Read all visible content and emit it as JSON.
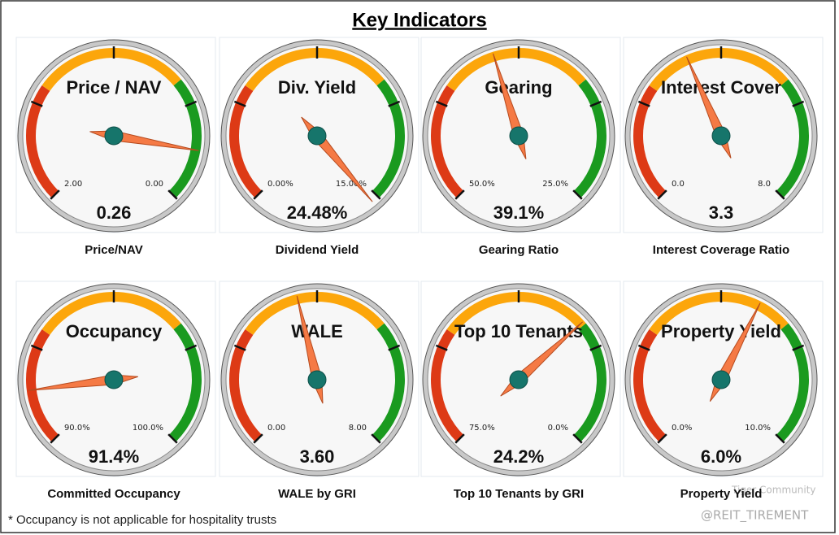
{
  "title": "Key Indicators",
  "footnote": "* Occupancy is not applicable for hospitality trusts",
  "watermark": [
    "Tiger Community",
    "@REIT_TIREMENT"
  ],
  "chart_data": [
    {
      "type": "gauge",
      "title": "Price / NAV",
      "range": [
        {
          "value": 2,
          "label": "2.00"
        },
        {
          "value": 0,
          "label": "0.00"
        }
      ],
      "value": 0.26,
      "caption": "Price/NAV"
    },
    {
      "type": "gauge",
      "title": "Div. Yield",
      "range": [
        {
          "value": 0,
          "label": "0.00%"
        },
        {
          "value": 15,
          "label": "15.00%"
        }
      ],
      "value": 24.48,
      "value_label": "24.48%",
      "caption": "Dividend Yield"
    },
    {
      "type": "gauge",
      "title": "Gearing",
      "range": [
        {
          "value": 50,
          "label": "50.0%"
        },
        {
          "value": 25,
          "label": "25.0%"
        }
      ],
      "value": 39.1,
      "value_label": "39.1%",
      "caption": "Gearing Ratio"
    },
    {
      "type": "gauge",
      "title": "Interest Cover",
      "range": [
        {
          "value": 0,
          "label": "0.0"
        },
        {
          "value": 8,
          "label": "8.0"
        }
      ],
      "value": 3.3,
      "caption": "Interest Coverage Ratio"
    },
    {
      "type": "gauge",
      "title": "Occupancy",
      "range": [
        {
          "value": 90,
          "label": "90.0%"
        },
        {
          "value": 100,
          "label": "100.0%"
        }
      ],
      "value": 91.4,
      "value_label": "91.4%",
      "caption": "Committed Occupancy"
    },
    {
      "type": "gauge",
      "title": "WALE",
      "range": [
        {
          "value": 0,
          "label": "0.00"
        },
        {
          "value": 8,
          "label": "8.00"
        }
      ],
      "value": 3.6,
      "value_label": "3.60",
      "caption": "WALE by GRI"
    },
    {
      "type": "gauge",
      "title": "Top 10 Tenants",
      "range": [
        {
          "value": 75,
          "label": "75.0%"
        },
        {
          "value": 0,
          "label": "0.0%"
        }
      ],
      "value": 24.2,
      "value_label": "24.2%",
      "caption": "Top 10 Tenants by GRI"
    },
    {
      "type": "gauge",
      "title": "Property Yield",
      "range": [
        {
          "value": 0,
          "label": "0.0%"
        },
        {
          "value": 10,
          "label": "10.0%"
        }
      ],
      "value": 6.0,
      "value_label": "6.0%",
      "caption": "Property Yield"
    }
  ]
}
